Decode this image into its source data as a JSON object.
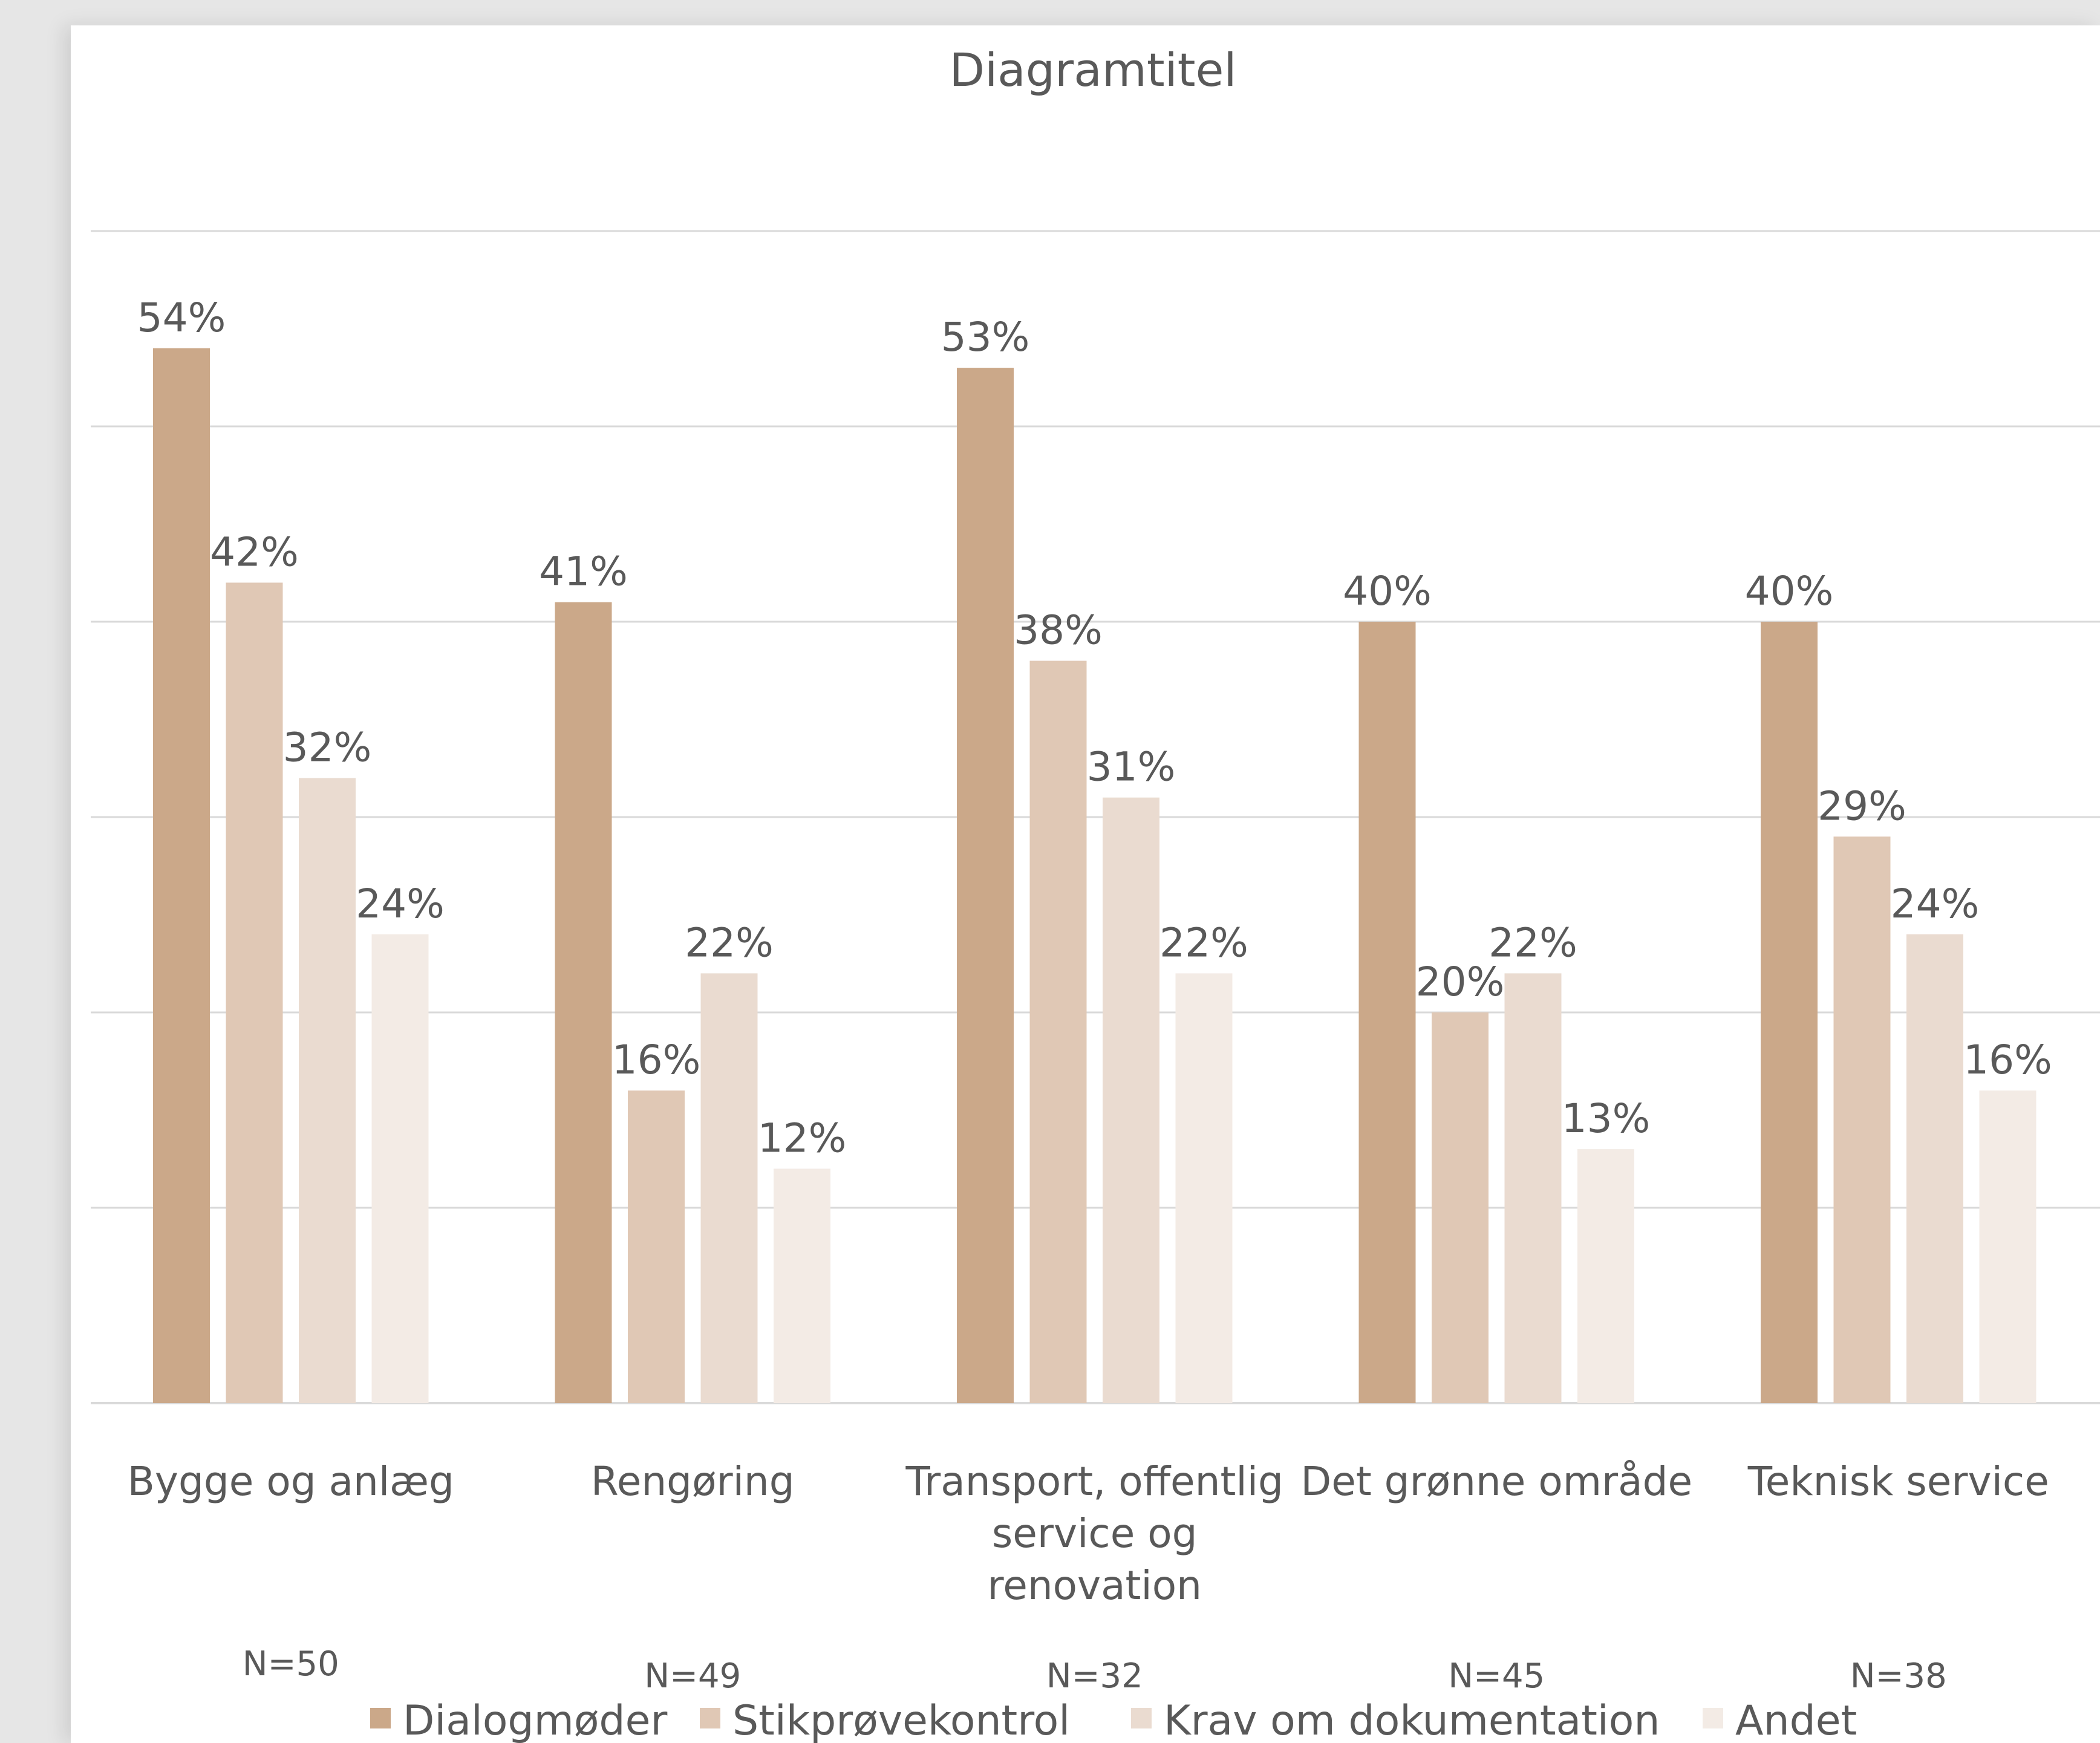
{
  "chart_data": {
    "type": "bar",
    "title": "Diagramtitel",
    "categories": [
      [
        "Bygge og anlæg"
      ],
      [
        "Rengøring"
      ],
      [
        "Transport, offentlig",
        "service og",
        "renovation"
      ],
      [
        "Det grønne område"
      ],
      [
        "Teknisk service"
      ]
    ],
    "sample_sizes": [
      "N=50",
      "N=49",
      "N=32",
      "N=45",
      "N=38"
    ],
    "series": [
      {
        "name": "Dialogmøder",
        "color": "#cba889",
        "values": [
          54,
          41,
          53,
          40,
          40
        ]
      },
      {
        "name": "Stikprøvekontrol",
        "color": "#e0c8b5",
        "values": [
          42,
          16,
          38,
          20,
          29
        ]
      },
      {
        "name": "Krav om dokumentation",
        "color": "#eadbd0",
        "values": [
          32,
          22,
          31,
          22,
          24
        ]
      },
      {
        "name": "Andet",
        "color": "#f3ebe5",
        "values": [
          24,
          12,
          22,
          13,
          16
        ]
      }
    ],
    "value_suffix": "%",
    "ylim": [
      0,
      60
    ],
    "gridline_step": 10,
    "grid": true,
    "legend_position": "bottom",
    "colors": {
      "gridline": "#d9d9d9",
      "text": "#595959"
    }
  }
}
